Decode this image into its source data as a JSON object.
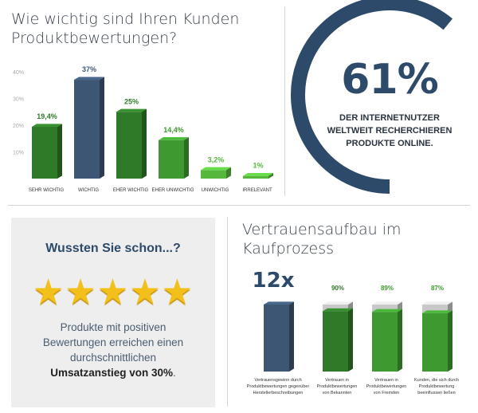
{
  "colors": {
    "dark_green": "#2f7a28",
    "green": "#3e9a30",
    "light_green": "#56b73d",
    "navy": "#3d5673",
    "grey_cap": "#c8c8c8",
    "title": "#3a4350",
    "star": "#f3c01b"
  },
  "top_left": {
    "title_line1": "Wie wichtig sind Ihren Kunden",
    "title_line2": "Produktbewertungen?"
  },
  "top_right": {
    "percent": "61%",
    "line1": "DER INTERNETNUTZER",
    "line2": "WELTWEIT RECHERCHIEREN",
    "line3": "PRODUKTE ONLINE.",
    "ring_fraction": 0.61
  },
  "bottom_left": {
    "heading": "Wussten Sie schon...?",
    "stars_count": 5,
    "stars": "★★★★★",
    "text_line1": "Produkte mit positiven",
    "text_line2": "Bewertungen erreichen einen",
    "text_line3": "durchschnittlichen",
    "text_bold": "Umsatzanstieg von 30%",
    "text_end": "."
  },
  "bottom_right": {
    "title_line1": "Vertrauensaufbau im",
    "title_line2": "Kaufprozess"
  },
  "chart_data": [
    {
      "type": "bar",
      "title": "Wie wichtig sind Ihren Kunden Produktbewertungen?",
      "categories": [
        "SEHR WICHTIG",
        "WICHTIG",
        "EHER WICHTIG",
        "EHER UNWICHTIG",
        "UNWICHTIG",
        "IRRELEVANT"
      ],
      "values": [
        19.4,
        37,
        25,
        14.4,
        3.2,
        1
      ],
      "value_labels": [
        "19,4%",
        "37%",
        "25%",
        "14,4%",
        "3,2%",
        "1%"
      ],
      "bar_colors": [
        "#2f7a28",
        "#3d5673",
        "#2f7a28",
        "#3e9a30",
        "#56b73d",
        "#56b73d"
      ],
      "label_colors": [
        "#2f7a28",
        "#3d5673",
        "#2f7a28",
        "#3e9a30",
        "#56b73d",
        "#56b73d"
      ],
      "yticks": [
        "10%",
        "20%",
        "30%",
        "40%"
      ],
      "ylim": [
        0,
        40
      ],
      "grid": false
    },
    {
      "type": "bar",
      "title": "Vertrauensaufbau im Kaufprozess",
      "categories": [
        [
          "Vertrauensgewinn durch",
          "Produktbewertungen gegenüber",
          "Herstellerbeschreibungen"
        ],
        [
          "Vertrauen in",
          "Produktbewertungen",
          "von Bekannten"
        ],
        [
          "Vertrauen in",
          "Produktbewertungen",
          "von Fremden"
        ],
        [
          "Kunden, die sich durch",
          "Produktbewertung",
          "beeinflussen ließen"
        ]
      ],
      "values": [
        12,
        90,
        89,
        87
      ],
      "value_labels": [
        "12x",
        "90%",
        "89%",
        "87%"
      ],
      "units": [
        "x",
        "%",
        "%",
        "%"
      ],
      "bar_colors": [
        "#3d5673",
        "#2f7a28",
        "#3e9a30",
        "#3e9a30"
      ],
      "label_colors": [
        "#2d4a6a",
        "#2f7a28",
        "#3e9a30",
        "#3e9a30"
      ]
    }
  ]
}
